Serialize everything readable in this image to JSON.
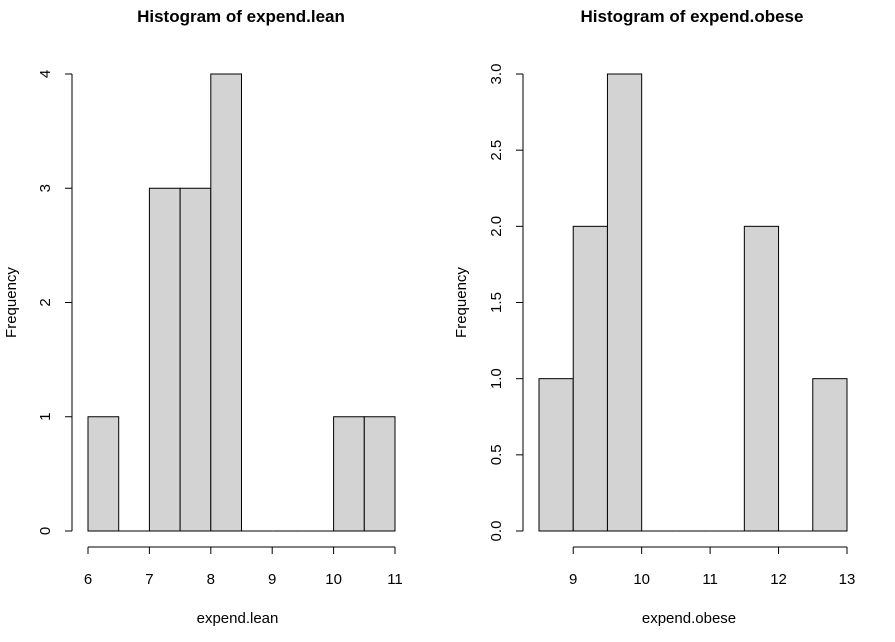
{
  "chart_data": [
    {
      "type": "bar",
      "title": "Histogram of expend.lean",
      "xlabel": "expend.lean",
      "ylabel": "Frequency",
      "bins": [
        {
          "from": 6.0,
          "to": 6.5,
          "count": 1
        },
        {
          "from": 6.5,
          "to": 7.0,
          "count": 0
        },
        {
          "from": 7.0,
          "to": 7.5,
          "count": 3
        },
        {
          "from": 7.5,
          "to": 8.0,
          "count": 3
        },
        {
          "from": 8.0,
          "to": 8.5,
          "count": 4
        },
        {
          "from": 8.5,
          "to": 9.0,
          "count": 0
        },
        {
          "from": 9.0,
          "to": 9.5,
          "count": 0
        },
        {
          "from": 9.5,
          "to": 10.0,
          "count": 0
        },
        {
          "from": 10.0,
          "to": 10.5,
          "count": 1
        },
        {
          "from": 10.5,
          "to": 11.0,
          "count": 1
        }
      ],
      "xlim": [
        6,
        11
      ],
      "ylim": [
        0,
        4
      ],
      "x_ticks": [
        "6",
        "7",
        "8",
        "9",
        "10",
        "11"
      ],
      "y_ticks": [
        "0",
        "1",
        "2",
        "3",
        "4"
      ]
    },
    {
      "type": "bar",
      "title": "Histogram of expend.obese",
      "xlabel": "expend.obese",
      "ylabel": "Frequency",
      "bins": [
        {
          "from": 8.5,
          "to": 9.0,
          "count": 1
        },
        {
          "from": 9.0,
          "to": 9.5,
          "count": 2
        },
        {
          "from": 9.5,
          "to": 10.0,
          "count": 3
        },
        {
          "from": 10.0,
          "to": 10.5,
          "count": 0
        },
        {
          "from": 10.5,
          "to": 11.0,
          "count": 0
        },
        {
          "from": 11.0,
          "to": 11.5,
          "count": 0
        },
        {
          "from": 11.5,
          "to": 12.0,
          "count": 2
        },
        {
          "from": 12.0,
          "to": 12.5,
          "count": 0
        },
        {
          "from": 12.5,
          "to": 13.0,
          "count": 1
        }
      ],
      "xlim": [
        8.5,
        13
      ],
      "ylim": [
        0,
        3
      ],
      "x_ticks": [
        "9",
        "10",
        "11",
        "12",
        "13"
      ],
      "y_ticks": [
        "0.0",
        "0.5",
        "1.0",
        "1.5",
        "2.0",
        "2.5",
        "3.0"
      ]
    }
  ]
}
